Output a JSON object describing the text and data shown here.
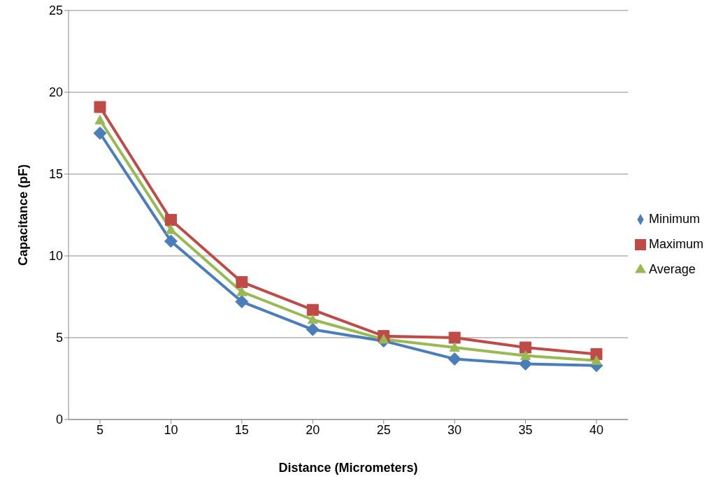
{
  "chart_data": {
    "type": "line",
    "xlabel": "Distance (Micrometers)",
    "ylabel": "Capacitance (pF)",
    "categories": [
      "5",
      "10",
      "15",
      "20",
      "25",
      "30",
      "35",
      "40"
    ],
    "series": [
      {
        "name": "Minimum",
        "color": "#4a7ebb",
        "marker": "diamond",
        "values": [
          17.5,
          10.9,
          7.2,
          5.5,
          4.8,
          3.7,
          3.4,
          3.3
        ]
      },
      {
        "name": "Maximum",
        "color": "#be4b48",
        "marker": "square",
        "values": [
          19.1,
          12.2,
          8.4,
          6.7,
          5.1,
          5.0,
          4.4,
          4.0
        ]
      },
      {
        "name": "Average",
        "color": "#98b954",
        "marker": "triangle",
        "values": [
          18.3,
          11.6,
          7.8,
          6.1,
          4.9,
          4.4,
          3.9,
          3.6
        ]
      }
    ],
    "ylim": [
      0,
      25
    ],
    "yticks": [
      0,
      5,
      10,
      15,
      20,
      25
    ],
    "grid": "y",
    "legend": "right"
  }
}
